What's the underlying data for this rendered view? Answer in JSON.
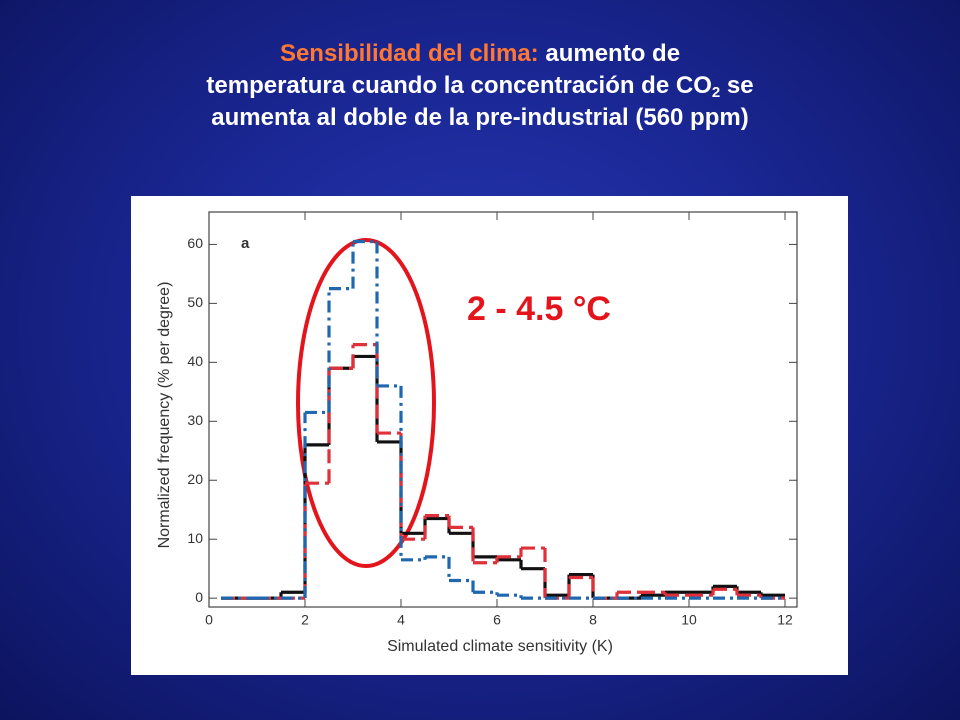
{
  "slide": {
    "title_highlight": "Sensibilidad del clima:",
    "title_line1": "aumento de",
    "title_line2": "temperatura cuando la concentración de CO",
    "title_subscript": "2",
    "title_line2_end": "se",
    "title_line3": "aumenta al doble de la pre-industrial (560 ppm)"
  },
  "chart_data": {
    "type": "histogram",
    "panel_label": "a",
    "annotation": "2 - 4.5 °C",
    "x_label": "Simulated climate sensitivity (K)",
    "y_label": "Normalized frequency (% per degree)",
    "bins": [
      0.25,
      1,
      1.5,
      2,
      2.5,
      3,
      3.5,
      4,
      4.5,
      5,
      5.5,
      6,
      6.5,
      7,
      7.5,
      8,
      8.5,
      9,
      9.5,
      10,
      10.5,
      11,
      11.5,
      12
    ],
    "series": [
      {
        "color": "#111111",
        "dash": "solid",
        "values": [
          0,
          0,
          1,
          26,
          39,
          41,
          26.5,
          11,
          13.5,
          11,
          7,
          6.5,
          5,
          0.5,
          4,
          0,
          0,
          0.5,
          1,
          1,
          2,
          1,
          0.5
        ]
      },
      {
        "color": "#e0303a",
        "dash": "dashed",
        "values": [
          0,
          0,
          0,
          19.5,
          39,
          43,
          28,
          10,
          14,
          12,
          6,
          7,
          8.5,
          0,
          3.5,
          0,
          1,
          1,
          0.5,
          0.5,
          1.5,
          0.5,
          0
        ]
      },
      {
        "color": "#1f68b0",
        "dash": "dashdot",
        "values": [
          0,
          0,
          0,
          31.5,
          52.5,
          60.5,
          36,
          6.5,
          7,
          3,
          1,
          0.5,
          0,
          0,
          0,
          0,
          0,
          0,
          0,
          0,
          0,
          0,
          0
        ]
      }
    ],
    "xlim": [
      0,
      12.25
    ],
    "ylim": [
      -1.5,
      65.5
    ],
    "xticks": [
      0,
      2,
      4,
      6,
      8,
      10,
      12
    ],
    "yticks": [
      0,
      10,
      20,
      30,
      40,
      50,
      60
    ]
  }
}
